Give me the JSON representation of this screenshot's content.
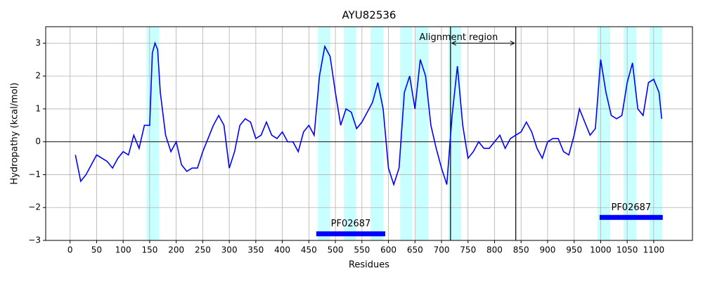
{
  "chart_data": {
    "type": "line",
    "title": "AYU82536",
    "xlabel": "Residues",
    "ylabel": "Hydropathy (kcal/mol)",
    "x": [
      10,
      20,
      30,
      40,
      50,
      60,
      70,
      80,
      90,
      100,
      110,
      120,
      130,
      140,
      150,
      155,
      160,
      165,
      170,
      180,
      190,
      200,
      210,
      220,
      230,
      240,
      250,
      260,
      270,
      280,
      290,
      300,
      310,
      320,
      330,
      340,
      350,
      360,
      370,
      380,
      390,
      400,
      410,
      420,
      430,
      440,
      450,
      460,
      470,
      480,
      490,
      500,
      510,
      520,
      530,
      540,
      550,
      560,
      570,
      580,
      590,
      600,
      610,
      620,
      630,
      640,
      650,
      660,
      670,
      680,
      690,
      700,
      710,
      720,
      730,
      740,
      750,
      760,
      770,
      780,
      790,
      800,
      810,
      820,
      830,
      840,
      850,
      860,
      870,
      880,
      890,
      900,
      910,
      920,
      930,
      940,
      950,
      960,
      970,
      980,
      990,
      1000,
      1010,
      1020,
      1030,
      1040,
      1050,
      1060,
      1070,
      1080,
      1090,
      1100,
      1110,
      1115
    ],
    "series": [
      {
        "name": "Hydropathy",
        "color": "#0000ff",
        "values": [
          -0.4,
          -1.2,
          -1.0,
          -0.7,
          -0.4,
          -0.5,
          -0.6,
          -0.8,
          -0.5,
          -0.3,
          -0.4,
          0.2,
          -0.2,
          0.5,
          0.5,
          2.7,
          3.0,
          2.8,
          1.5,
          0.2,
          -0.3,
          0.0,
          -0.7,
          -0.9,
          -0.8,
          -0.8,
          -0.3,
          0.1,
          0.5,
          0.8,
          0.5,
          -0.8,
          -0.3,
          0.5,
          0.7,
          0.6,
          0.1,
          0.2,
          0.6,
          0.2,
          0.1,
          0.3,
          0.0,
          0.0,
          -0.3,
          0.3,
          0.5,
          0.2,
          2.0,
          2.9,
          2.6,
          1.5,
          0.5,
          1.0,
          0.9,
          0.4,
          0.6,
          0.9,
          1.2,
          1.8,
          1.0,
          -0.8,
          -1.3,
          -0.8,
          1.5,
          2.0,
          1.0,
          2.5,
          2.0,
          0.5,
          -0.2,
          -0.8,
          -1.3,
          0.8,
          2.3,
          0.5,
          -0.5,
          -0.3,
          0.0,
          -0.2,
          -0.2,
          0.0,
          0.2,
          -0.2,
          0.1,
          0.2,
          0.3,
          0.6,
          0.3,
          -0.2,
          -0.5,
          0.0,
          0.1,
          0.1,
          -0.3,
          -0.4,
          0.2,
          1.0,
          0.6,
          0.2,
          0.4,
          2.5,
          1.5,
          0.8,
          0.7,
          0.8,
          1.8,
          2.4,
          1.0,
          0.8,
          1.8,
          1.9,
          1.5,
          0.7
        ]
      }
    ],
    "xlim": [
      -46,
      1173
    ],
    "ylim": [
      -3,
      3.5
    ],
    "xticks": [
      0,
      50,
      100,
      150,
      200,
      250,
      300,
      350,
      400,
      450,
      500,
      550,
      600,
      650,
      700,
      750,
      800,
      850,
      900,
      950,
      1000,
      1050,
      1100
    ],
    "yticks": [
      {
        "value": -3,
        "label": "−3"
      },
      {
        "value": -2,
        "label": "−2"
      },
      {
        "value": -1,
        "label": "−1"
      },
      0,
      1,
      2,
      3
    ],
    "grid": true,
    "regions": [
      [
        144,
        168
      ],
      [
        467,
        490
      ],
      [
        516,
        539
      ],
      [
        566,
        590
      ],
      [
        622,
        645
      ],
      [
        651,
        675
      ],
      [
        713,
        737
      ],
      [
        994,
        1018
      ],
      [
        1043,
        1067
      ],
      [
        1092,
        1116
      ]
    ],
    "region_color": "#c8ffff",
    "vlines": [
      717,
      840
    ],
    "annotation": "Alignment region",
    "domains": [
      {
        "label": "PF02687",
        "start": 464,
        "end": 594,
        "y": -2.8
      },
      {
        "label": "PF02687",
        "start": 998,
        "end": 1117,
        "y": -2.3
      }
    ]
  }
}
